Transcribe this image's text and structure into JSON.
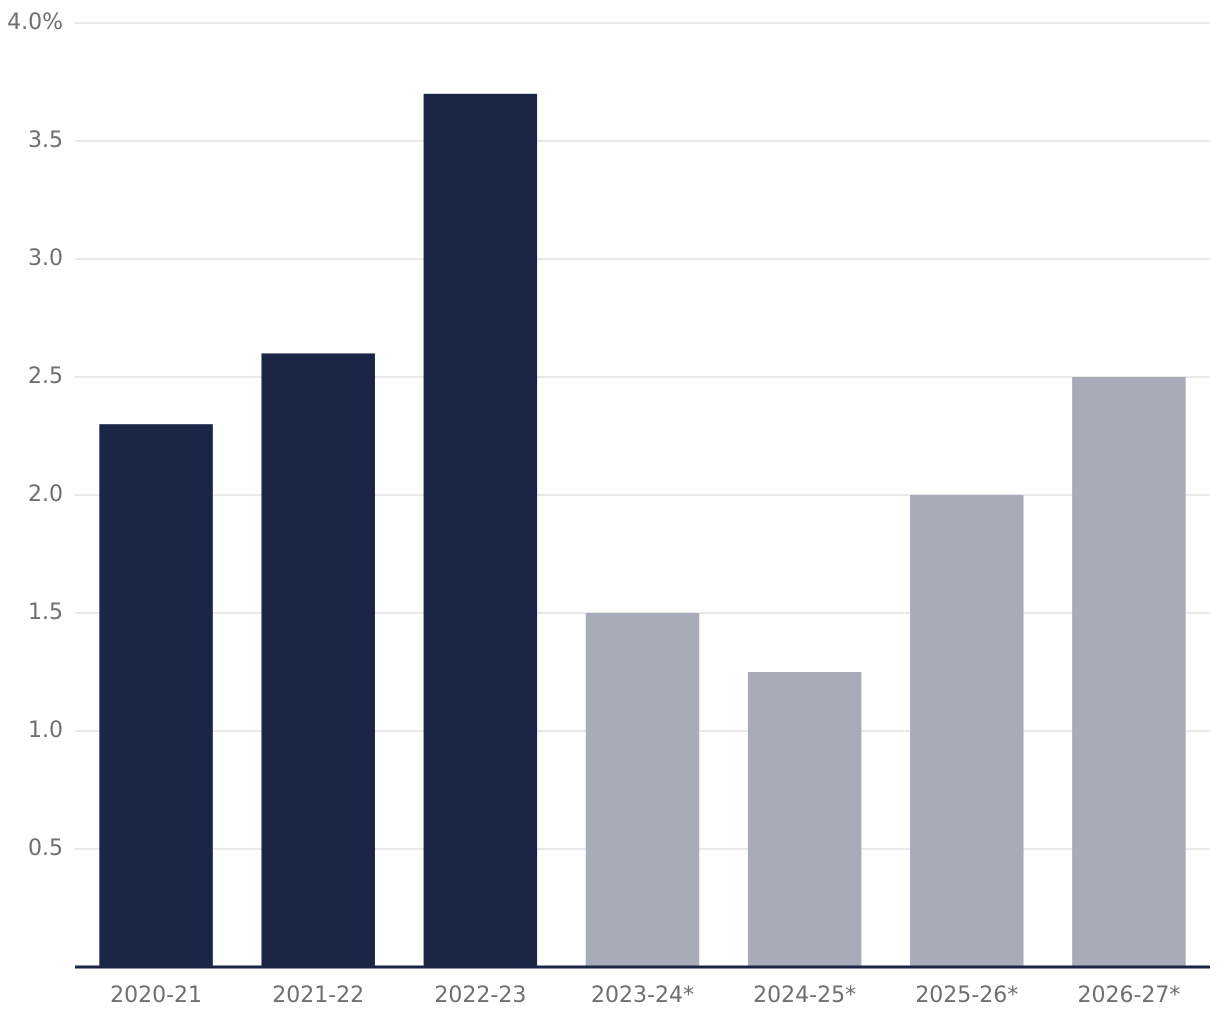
{
  "chart_data": {
    "type": "bar",
    "categories": [
      "2020-21",
      "2021-22",
      "2022-23",
      "2023-24*",
      "2024-25*",
      "2025-26*",
      "2026-27*"
    ],
    "values": [
      2.3,
      2.6,
      3.7,
      1.5,
      1.25,
      2.0,
      2.5
    ],
    "colors": [
      "#1b2646",
      "#1b2646",
      "#1b2646",
      "#a7acb8",
      "#a7acb8",
      "#a7acb8",
      "#a7acb8"
    ],
    "ylim": [
      0,
      4
    ],
    "yticks": [
      0.5,
      {
        "value": 1,
        "label": "1.0"
      },
      1.5,
      {
        "value": 2,
        "label": "2.0"
      },
      2.5,
      {
        "value": 3,
        "label": "3.0"
      },
      3.5,
      {
        "value": 4,
        "label": "4.0%"
      }
    ],
    "grid": true
  }
}
